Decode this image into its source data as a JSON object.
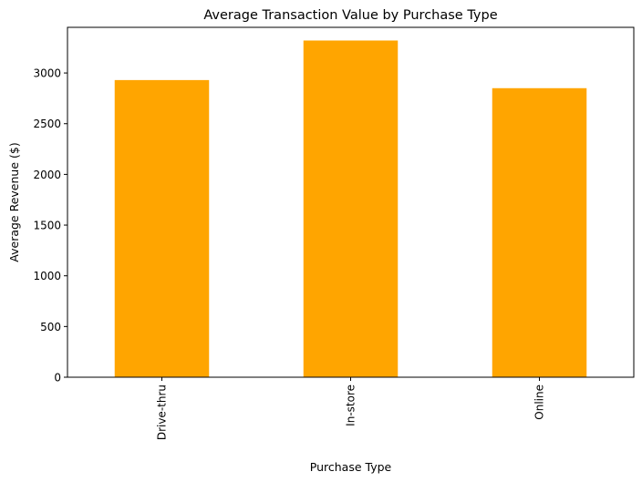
{
  "chart_data": {
    "type": "bar",
    "title": "Average Transaction Value by Purchase Type",
    "xlabel": "Purchase Type",
    "ylabel": "Average Revenue ($)",
    "categories": [
      "Drive-thru",
      "In-store",
      "Online"
    ],
    "values": [
      2930,
      3320,
      2850
    ],
    "ylim": [
      0,
      3450
    ],
    "yticks": [
      0,
      500,
      1000,
      1500,
      2000,
      2500,
      3000
    ],
    "grid": false,
    "legend": "none",
    "bar_color": "#FFA500",
    "x_tick_rotation": "vertical"
  }
}
